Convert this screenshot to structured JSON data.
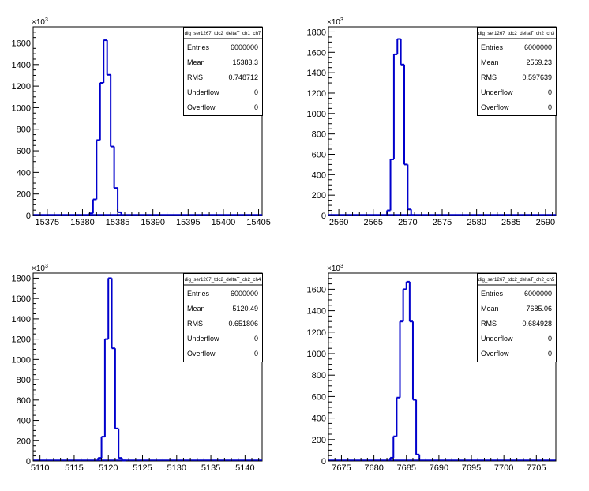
{
  "canvas": {
    "background": "#ffffff",
    "line_color": "#0000cc",
    "frame_color": "#000000"
  },
  "chart_data": [
    {
      "type": "histogram",
      "stats": {
        "title": "dig_ser1267_tdc2_deltaT_ch1_ch7",
        "rows": [
          {
            "label": "Entries",
            "value": "6000000"
          },
          {
            "label": "Mean",
            "value": "15383.3"
          },
          {
            "label": "RMS",
            "value": "0.748712"
          },
          {
            "label": "Underflow",
            "value": "0"
          },
          {
            "label": "Overflow",
            "value": "0"
          }
        ]
      },
      "xlim": [
        15373,
        15405.5
      ],
      "ylim": [
        0,
        1750
      ],
      "y_exponent_label": "×10³",
      "y_exponent_base": "10",
      "y_exponent_power": "3",
      "xticks": [
        15375,
        15380,
        15385,
        15390,
        15395,
        15400,
        15405
      ],
      "yticks": [
        0,
        200,
        400,
        600,
        800,
        1000,
        1200,
        1400,
        1600
      ],
      "bin_width": 0.5,
      "bin_edges": [
        15381.0,
        15381.5,
        15382.0,
        15382.5,
        15383.0,
        15383.5,
        15384.0,
        15384.5,
        15385.0,
        15385.5
      ],
      "values": [
        20,
        150,
        700,
        1230,
        1625,
        1305,
        640,
        255,
        30
      ]
    },
    {
      "type": "histogram",
      "stats": {
        "title": "dig_ser1267_tdc2_deltaT_ch2_ch3",
        "rows": [
          {
            "label": "Entries",
            "value": "6000000"
          },
          {
            "label": "Mean",
            "value": "2569.23"
          },
          {
            "label": "RMS",
            "value": "0.597639"
          },
          {
            "label": "Underflow",
            "value": "0"
          },
          {
            "label": "Overflow",
            "value": "0"
          }
        ]
      },
      "xlim": [
        2558.5,
        2591.5
      ],
      "ylim": [
        0,
        1850
      ],
      "y_exponent_label": "×10³",
      "y_exponent_base": "10",
      "y_exponent_power": "3",
      "xticks": [
        2560,
        2565,
        2570,
        2575,
        2580,
        2585,
        2590
      ],
      "yticks": [
        0,
        200,
        400,
        600,
        800,
        1000,
        1200,
        1400,
        1600,
        1800
      ],
      "bin_width": 0.5,
      "bin_edges": [
        2567.0,
        2567.5,
        2568.0,
        2568.5,
        2569.0,
        2569.5,
        2570.0,
        2570.5,
        2571.0
      ],
      "values": [
        50,
        550,
        1580,
        1730,
        1480,
        500,
        60,
        5
      ]
    },
    {
      "type": "histogram",
      "stats": {
        "title": "dig_ser1267_tdc2_deltaT_ch2_ch4",
        "rows": [
          {
            "label": "Entries",
            "value": "6000000"
          },
          {
            "label": "Mean",
            "value": "5120.49"
          },
          {
            "label": "RMS",
            "value": "0.651806"
          },
          {
            "label": "Underflow",
            "value": "0"
          },
          {
            "label": "Overflow",
            "value": "0"
          }
        ]
      },
      "xlim": [
        5109,
        5142.5
      ],
      "ylim": [
        0,
        1850
      ],
      "y_exponent_label": "×10³",
      "y_exponent_base": "10",
      "y_exponent_power": "3",
      "xticks": [
        5110,
        5115,
        5120,
        5125,
        5130,
        5135,
        5140
      ],
      "yticks": [
        0,
        200,
        400,
        600,
        800,
        1000,
        1200,
        1400,
        1600,
        1800
      ],
      "bin_width": 0.5,
      "bin_edges": [
        5118.5,
        5119.0,
        5119.5,
        5120.0,
        5120.5,
        5121.0,
        5121.5,
        5122.0,
        5122.5
      ],
      "values": [
        30,
        240,
        1200,
        1800,
        1110,
        320,
        30,
        5
      ]
    },
    {
      "type": "histogram",
      "stats": {
        "title": "dig_ser1267_tdc2_deltaT_ch2_ch5",
        "rows": [
          {
            "label": "Entries",
            "value": "6000000"
          },
          {
            "label": "Mean",
            "value": "7685.06"
          },
          {
            "label": "RMS",
            "value": "0.684928"
          },
          {
            "label": "Underflow",
            "value": "0"
          },
          {
            "label": "Overflow",
            "value": "0"
          }
        ]
      },
      "xlim": [
        7673,
        7708
      ],
      "ylim": [
        0,
        1750
      ],
      "y_exponent_label": "×10³",
      "y_exponent_base": "10",
      "y_exponent_power": "3",
      "xticks": [
        7675,
        7680,
        7685,
        7690,
        7695,
        7700,
        7705
      ],
      "yticks": [
        0,
        200,
        400,
        600,
        800,
        1000,
        1200,
        1400,
        1600
      ],
      "bin_width": 0.5,
      "bin_edges": [
        7682.5,
        7683.0,
        7683.5,
        7684.0,
        7684.5,
        7685.0,
        7685.5,
        7686.0,
        7686.5,
        7687.0
      ],
      "values": [
        30,
        230,
        590,
        1300,
        1600,
        1670,
        1300,
        570,
        60
      ]
    }
  ]
}
